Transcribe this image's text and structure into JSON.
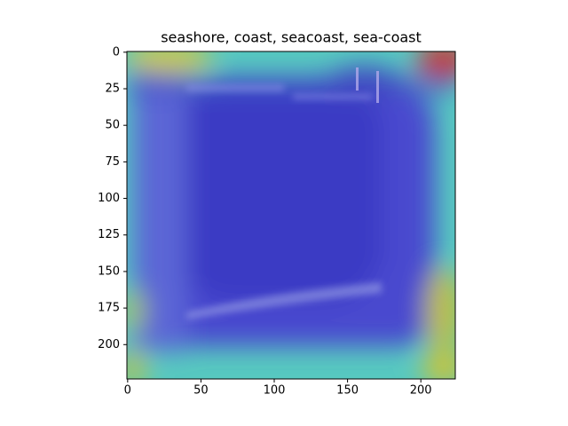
{
  "chart_data": {
    "type": "image",
    "title": "seashore, coast, seacoast, sea-coast",
    "xlim": [
      -0.5,
      223.5
    ],
    "ylim": [
      223.5,
      -0.5
    ],
    "xticks": [
      0,
      50,
      100,
      150,
      200
    ],
    "yticks": [
      0,
      25,
      50,
      75,
      100,
      125,
      150,
      175,
      200
    ]
  }
}
